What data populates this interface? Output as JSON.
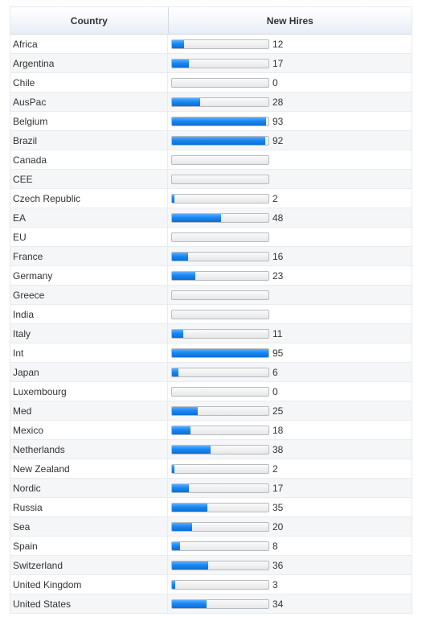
{
  "table": {
    "headers": {
      "country": "Country",
      "new_hires": "New Hires"
    },
    "max_value": 95,
    "bar_color": "#1a86f0",
    "rows": [
      {
        "country": "Africa",
        "value": 12,
        "label": "12"
      },
      {
        "country": "Argentina",
        "value": 17,
        "label": "17"
      },
      {
        "country": "Chile",
        "value": 0,
        "label": "0"
      },
      {
        "country": "AusPac",
        "value": 28,
        "label": "28"
      },
      {
        "country": "Belgium",
        "value": 93,
        "label": "93"
      },
      {
        "country": "Brazil",
        "value": 92,
        "label": "92"
      },
      {
        "country": "Canada",
        "value": null,
        "label": ""
      },
      {
        "country": "CEE",
        "value": null,
        "label": ""
      },
      {
        "country": "Czech Republic",
        "value": 2,
        "label": "2"
      },
      {
        "country": "EA",
        "value": 48,
        "label": "48"
      },
      {
        "country": "EU",
        "value": null,
        "label": ""
      },
      {
        "country": "France",
        "value": 16,
        "label": "16"
      },
      {
        "country": "Germany",
        "value": 23,
        "label": "23"
      },
      {
        "country": "Greece",
        "value": null,
        "label": ""
      },
      {
        "country": "India",
        "value": null,
        "label": ""
      },
      {
        "country": "Italy",
        "value": 11,
        "label": "11"
      },
      {
        "country": "Int",
        "value": 95,
        "label": "95"
      },
      {
        "country": "Japan",
        "value": 6,
        "label": "6"
      },
      {
        "country": "Luxembourg",
        "value": 0,
        "label": "0"
      },
      {
        "country": "Med",
        "value": 25,
        "label": "25"
      },
      {
        "country": "Mexico",
        "value": 18,
        "label": "18"
      },
      {
        "country": "Netherlands",
        "value": 38,
        "label": "38"
      },
      {
        "country": "New Zealand",
        "value": 2,
        "label": "2"
      },
      {
        "country": "Nordic",
        "value": 17,
        "label": "17"
      },
      {
        "country": "Russia",
        "value": 35,
        "label": "35"
      },
      {
        "country": "Sea",
        "value": 20,
        "label": "20"
      },
      {
        "country": "Spain",
        "value": 8,
        "label": "8"
      },
      {
        "country": "Switzerland",
        "value": 36,
        "label": "36"
      },
      {
        "country": "United Kingdom",
        "value": 3,
        "label": "3"
      },
      {
        "country": "United States",
        "value": 34,
        "label": "34"
      }
    ]
  }
}
